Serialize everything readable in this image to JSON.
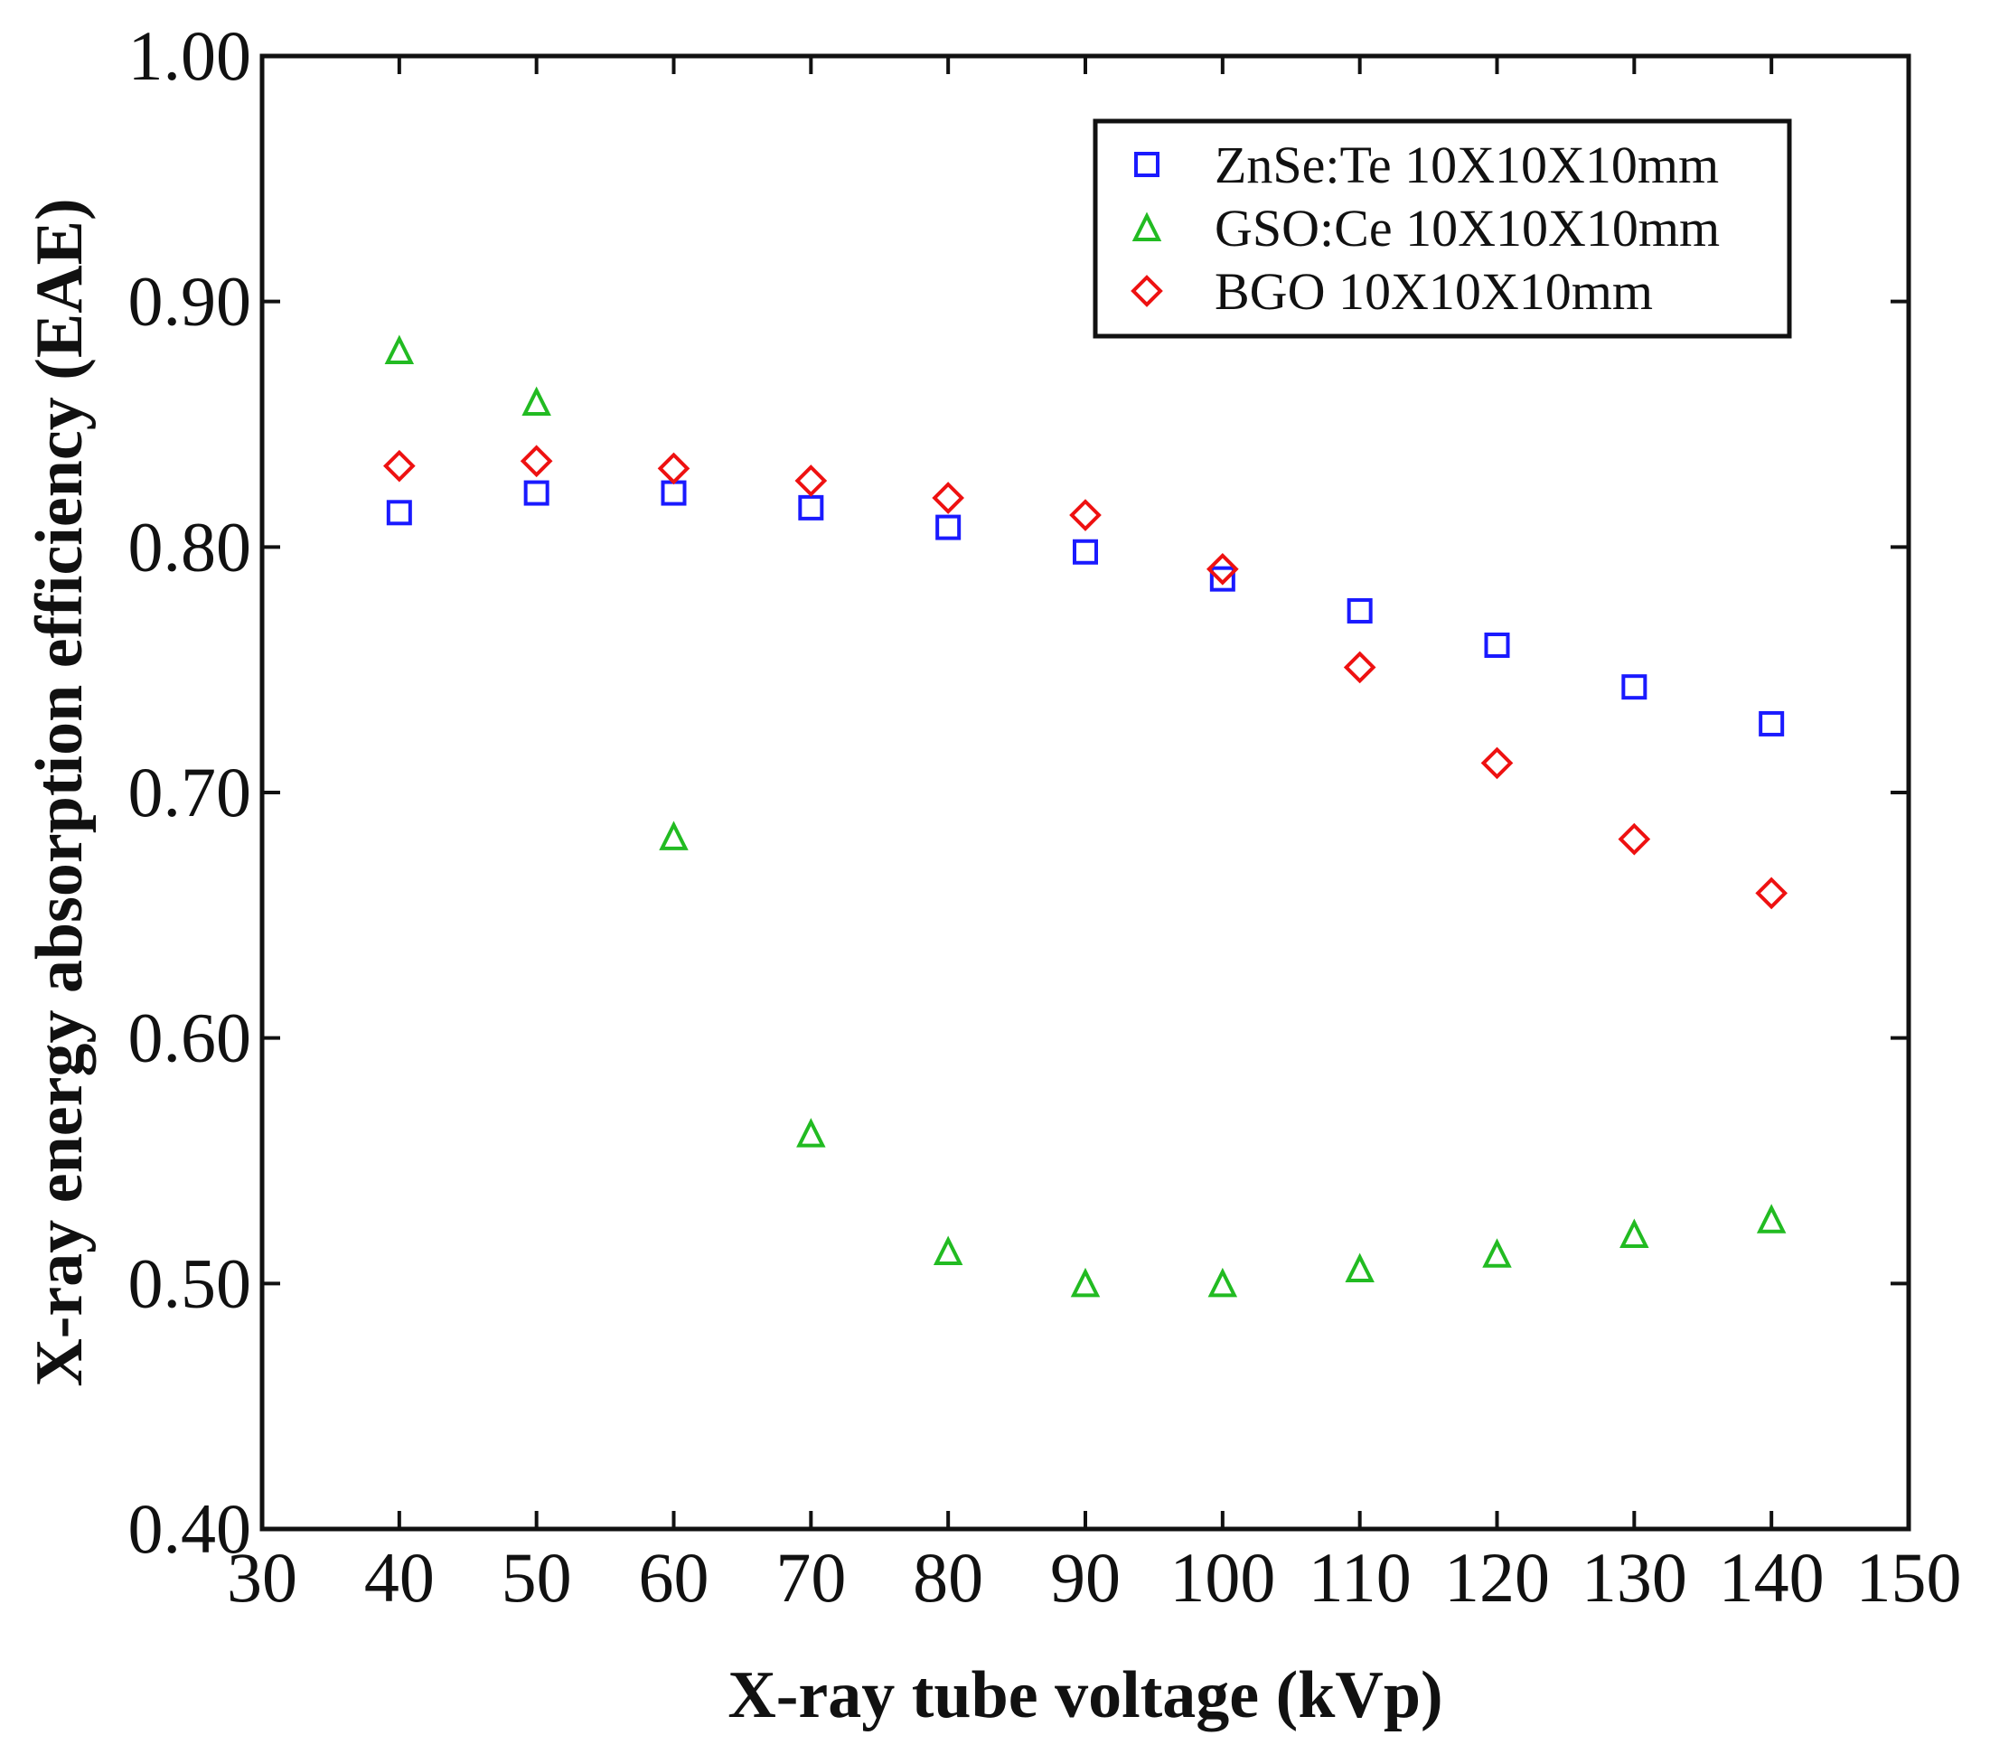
{
  "chart_data": {
    "type": "scatter",
    "title": "",
    "xlabel": "X-ray tube voltage (kVp)",
    "ylabel": "X-ray energy absorption efficiency (EAE)",
    "xlim": [
      30,
      150
    ],
    "ylim": [
      0.4,
      1.0
    ],
    "xticks": [
      30,
      40,
      50,
      60,
      70,
      80,
      90,
      100,
      110,
      120,
      130,
      140,
      150
    ],
    "yticks": [
      0.4,
      0.5,
      0.6,
      0.7,
      0.8,
      0.9,
      1.0
    ],
    "xtick_labels": [
      "30",
      "40",
      "50",
      "60",
      "70",
      "80",
      "90",
      "100",
      "110",
      "120",
      "130",
      "140",
      "150"
    ],
    "ytick_labels": [
      "0.40",
      "0.50",
      "0.60",
      "0.70",
      "0.80",
      "0.90",
      "1.00"
    ],
    "grid": false,
    "legend_position": "top-right",
    "series": [
      {
        "name": "ZnSe:Te 10X10X10mm",
        "marker": "square",
        "color": "#1a1aff",
        "x": [
          40,
          50,
          60,
          70,
          80,
          90,
          100,
          110,
          120,
          130,
          140
        ],
        "y": [
          0.814,
          0.822,
          0.822,
          0.816,
          0.808,
          0.798,
          0.787,
          0.774,
          0.76,
          0.743,
          0.728
        ]
      },
      {
        "name": "GSO:Ce 10X10X10mm",
        "marker": "triangle",
        "color": "#22bb22",
        "x": [
          40,
          50,
          60,
          70,
          80,
          90,
          100,
          110,
          120,
          130,
          140
        ],
        "y": [
          0.88,
          0.859,
          0.682,
          0.561,
          0.513,
          0.5,
          0.5,
          0.506,
          0.512,
          0.52,
          0.526
        ]
      },
      {
        "name": "BGO 10X10X10mm",
        "marker": "diamond",
        "color": "#ee1111",
        "x": [
          40,
          50,
          60,
          70,
          80,
          90,
          100,
          110,
          120,
          130,
          140
        ],
        "y": [
          0.833,
          0.835,
          0.832,
          0.827,
          0.82,
          0.813,
          0.791,
          0.751,
          0.712,
          0.681,
          0.659
        ]
      }
    ]
  }
}
